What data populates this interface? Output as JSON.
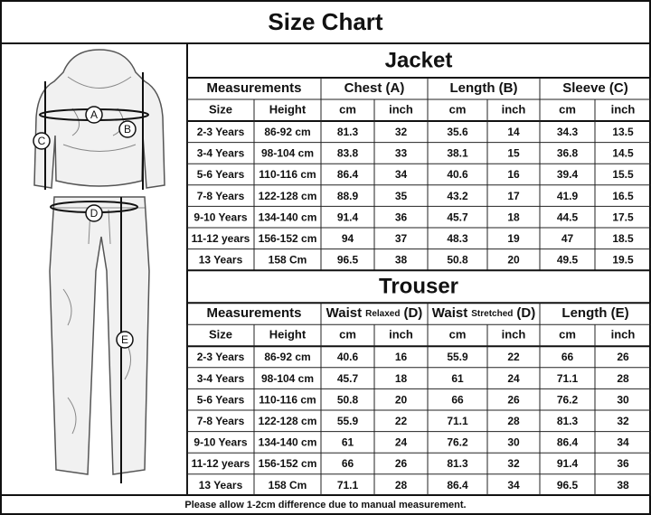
{
  "title": "Size Chart",
  "figure": {
    "labels": [
      "A",
      "B",
      "C",
      "D",
      "E"
    ]
  },
  "jacket": {
    "title": "Jacket",
    "header": {
      "measurements": "Measurements",
      "groups": [
        {
          "text": "Chest (A)"
        },
        {
          "text": "Length (B)"
        },
        {
          "text": "Sleeve (C)"
        }
      ]
    },
    "subheader": [
      "Size",
      "Height",
      "cm",
      "inch",
      "cm",
      "inch",
      "cm",
      "inch"
    ],
    "rows": [
      [
        "2-3 Years",
        "86-92 cm",
        "81.3",
        "32",
        "35.6",
        "14",
        "34.3",
        "13.5"
      ],
      [
        "3-4 Years",
        "98-104 cm",
        "83.8",
        "33",
        "38.1",
        "15",
        "36.8",
        "14.5"
      ],
      [
        "5-6 Years",
        "110-116 cm",
        "86.4",
        "34",
        "40.6",
        "16",
        "39.4",
        "15.5"
      ],
      [
        "7-8 Years",
        "122-128 cm",
        "88.9",
        "35",
        "43.2",
        "17",
        "41.9",
        "16.5"
      ],
      [
        "9-10 Years",
        "134-140 cm",
        "91.4",
        "36",
        "45.7",
        "18",
        "44.5",
        "17.5"
      ],
      [
        "11-12 years",
        "156-152 cm",
        "94",
        "37",
        "48.3",
        "19",
        "47",
        "18.5"
      ],
      [
        "13 Years",
        "158 Cm",
        "96.5",
        "38",
        "50.8",
        "20",
        "49.5",
        "19.5"
      ]
    ]
  },
  "trouser": {
    "title": "Trouser",
    "header": {
      "measurements": "Measurements",
      "groups": [
        {
          "text": "Waist",
          "small": "Relaxed",
          "suffix": "(D)"
        },
        {
          "text": "Waist",
          "small": "Stretched",
          "suffix": "(D)"
        },
        {
          "text": "Length (E)"
        }
      ]
    },
    "subheader": [
      "Size",
      "Height",
      "cm",
      "inch",
      "cm",
      "inch",
      "cm",
      "inch"
    ],
    "rows": [
      [
        "2-3 Years",
        "86-92 cm",
        "40.6",
        "16",
        "55.9",
        "22",
        "66",
        "26"
      ],
      [
        "3-4 Years",
        "98-104 cm",
        "45.7",
        "18",
        "61",
        "24",
        "71.1",
        "28"
      ],
      [
        "5-6 Years",
        "110-116 cm",
        "50.8",
        "20",
        "66",
        "26",
        "76.2",
        "30"
      ],
      [
        "7-8 Years",
        "122-128 cm",
        "55.9",
        "22",
        "71.1",
        "28",
        "81.3",
        "32"
      ],
      [
        "9-10 Years",
        "134-140 cm",
        "61",
        "24",
        "76.2",
        "30",
        "86.4",
        "34"
      ],
      [
        "11-12 years",
        "156-152 cm",
        "66",
        "26",
        "81.3",
        "32",
        "91.4",
        "36"
      ],
      [
        "13 Years",
        "158 Cm",
        "71.1",
        "28",
        "86.4",
        "34",
        "96.5",
        "38"
      ]
    ]
  },
  "footer": "Please allow 1-2cm difference due to manual measurement."
}
